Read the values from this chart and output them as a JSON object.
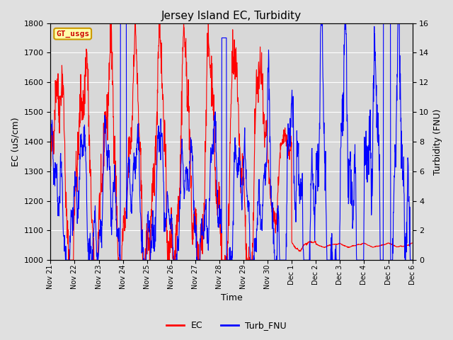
{
  "title": "Jersey Island EC, Turbidity",
  "xlabel": "Time",
  "ylabel_left": "EC (uS/cm)",
  "ylabel_right": "Turbidity (FNU)",
  "left_ylim": [
    1000,
    1800
  ],
  "right_ylim": [
    0,
    16
  ],
  "left_yticks": [
    1000,
    1100,
    1200,
    1300,
    1400,
    1500,
    1600,
    1700,
    1800
  ],
  "right_yticks": [
    0,
    2,
    4,
    6,
    8,
    10,
    12,
    14,
    16
  ],
  "fig_bg_color": "#e0e0e0",
  "plot_bg_color": "#d8d8d8",
  "legend_labels": [
    "EC",
    "Turb_FNU"
  ],
  "legend_colors": [
    "red",
    "blue"
  ],
  "gt_usgs_label": "GT_usgs",
  "gt_usgs_bg": "#ffffaa",
  "gt_usgs_fg": "#cc0000",
  "gt_usgs_border": "#cc9900",
  "ec_color": "red",
  "turb_color": "blue",
  "linewidth": 0.8,
  "n_points": 1500,
  "tick_labels": [
    "Nov 21",
    "Nov 22",
    "Nov 23",
    "Nov 24",
    "Nov 25",
    "Nov 26",
    "Nov 27",
    "Nov 28",
    "Nov 29",
    "Nov 30",
    "Dec 1",
    "Dec 2",
    "Dec 3",
    "Dec 4",
    "Dec 5",
    "Dec 6"
  ]
}
